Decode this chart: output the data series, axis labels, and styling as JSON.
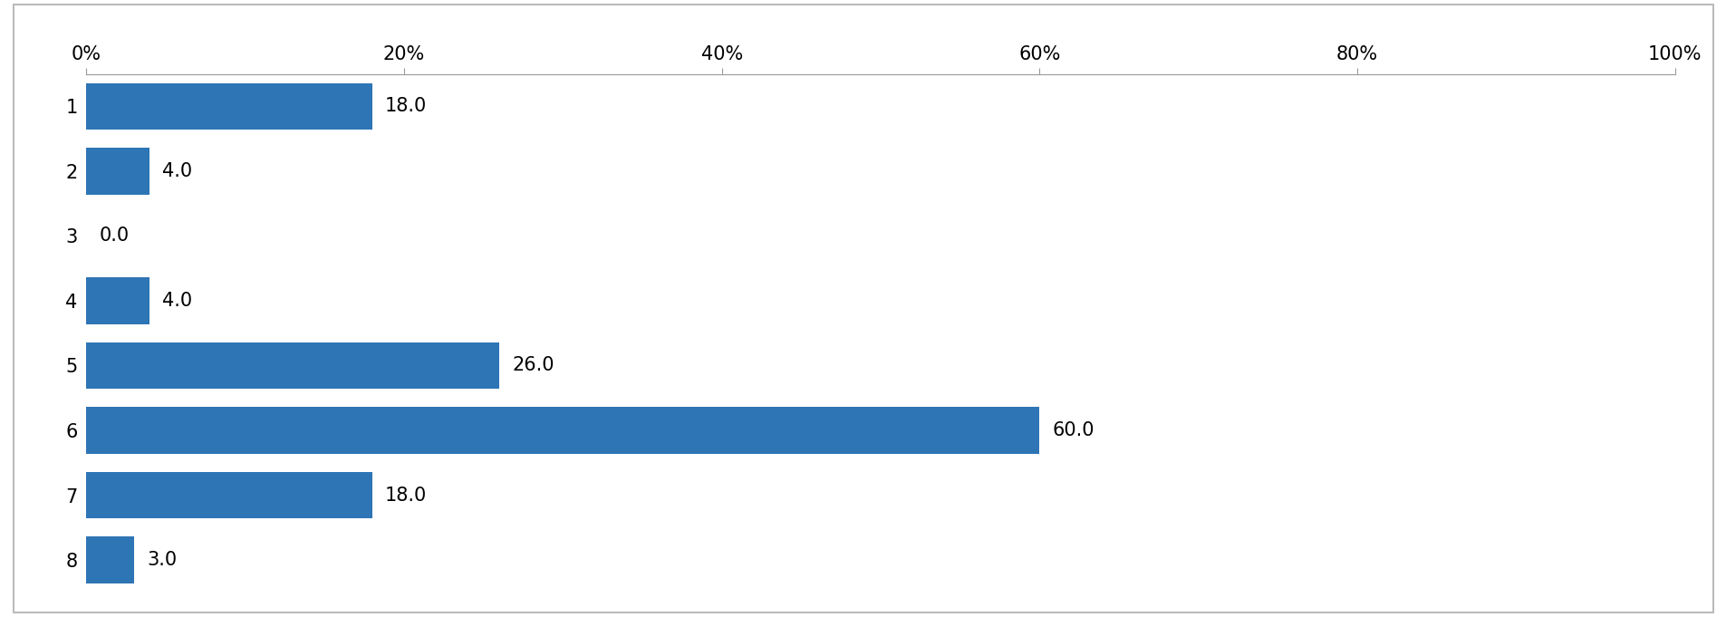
{
  "categories": [
    "1",
    "2",
    "3",
    "4",
    "5",
    "6",
    "7",
    "8"
  ],
  "values": [
    18.0,
    4.0,
    0.0,
    4.0,
    26.0,
    60.0,
    18.0,
    3.0
  ],
  "bar_color": "#2E75B6",
  "xlim": [
    0,
    100
  ],
  "xticks": [
    0,
    20,
    40,
    60,
    80,
    100
  ],
  "xticklabels": [
    "0%",
    "20%",
    "40%",
    "60%",
    "80%",
    "100%"
  ],
  "label_fontsize": 15,
  "tick_fontsize": 15,
  "bar_height": 0.72,
  "background_color": "#ffffff",
  "border_color": "#999999",
  "figure_width": 19.06,
  "figure_height": 6.81
}
